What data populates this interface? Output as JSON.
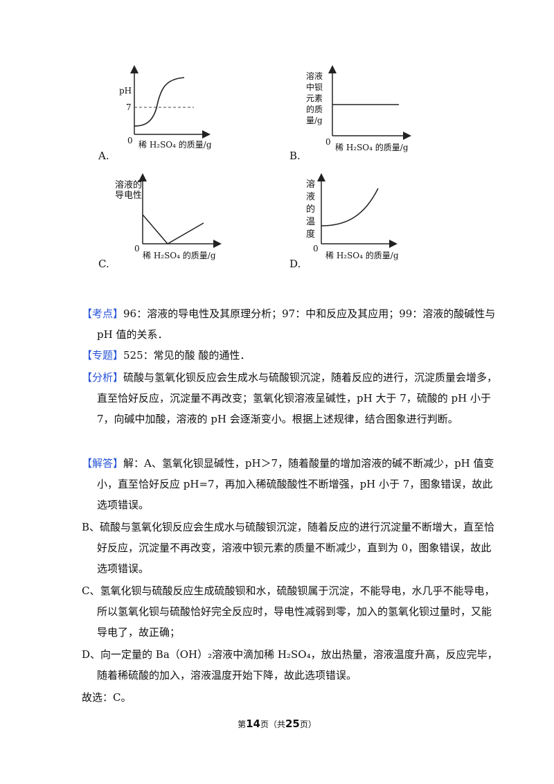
{
  "graphs": {
    "a": {
      "option": "A.",
      "ylabel": "pH",
      "y_ref": "7",
      "origin": "0",
      "xlabel": "稀 H₂SO₄ 的质量/g"
    },
    "b": {
      "option": "B.",
      "ylabel": "溶液中钡元素的质量/g",
      "origin": "0",
      "xlabel": "稀 H₂SO₄ 的质量/g"
    },
    "c": {
      "option": "C.",
      "ylabel": "溶液的导电性",
      "origin": "0",
      "xlabel": "稀 H₂SO₄ 的质量/g"
    },
    "d": {
      "option": "D.",
      "ylabel": "溶液的温度",
      "origin": "0",
      "xlabel": "稀 H₂SO₄ 的质量/g"
    }
  },
  "kaodian": {
    "tag": "【考点】",
    "text": "96：溶液的导电性及其原理分析；97：中和反应及其应用；99：溶液的酸碱性与 pH 值的关系．"
  },
  "zhuanti": {
    "tag": "【专题】",
    "text": "525：常见的酸  酸的通性．"
  },
  "fenxi": {
    "tag": "【分析】",
    "text": "硫酸与氢氧化钡反应会生成水与硫酸钡沉淀，随着反应的进行，沉淀质量会增多，直至恰好反应，沉淀量不再改变；氢氧化钡溶液呈碱性，pH 大于 7，硫酸的 pH 小于 7，向碱中加酸，溶液的 pH 会逐渐变小。根据上述规律，结合图象进行判断。"
  },
  "jieda": {
    "tag": "【解答】",
    "text": "解：A、氢氧化钡显碱性，pH＞7，随着酸量的增加溶液的碱不断减少，pH 值变小，直至恰好反应 pH=7，再加入稀硫酸酸性不断增强，pH 小于 7，图象错误，故此选项错误。"
  },
  "b_text": "B、硫酸与氢氧化钡反应会生成水与硫酸钡沉淀，随着反应的进行沉淀量不断增大，直至恰好反应，沉淀量不再改变，溶液中钡元素的质量不断减少，直到为 0，图象错误，故此选项错误。",
  "c_text": "C、氢氧化钡与硫酸反应生成硫酸钡和水，硫酸钡属于沉淀，不能导电，水几乎不能导电，所以氢氧化钡与硫酸恰好完全反应时，导电性减弱到零，加入的氢氧化钡过量时，又能导电了，故正确；",
  "d_text": "D、向一定量的 Ba（OH）₂溶液中滴加稀 H₂SO₄，放出热量，溶液温度升高，反应完毕，随着稀硫酸的加入，溶液温度开始下降，故此选项错误。",
  "answer": "故选：C。",
  "footer": {
    "prefix": "第",
    "page": "14",
    "mid": "页（共",
    "total": "25",
    "suffix": "页）"
  }
}
